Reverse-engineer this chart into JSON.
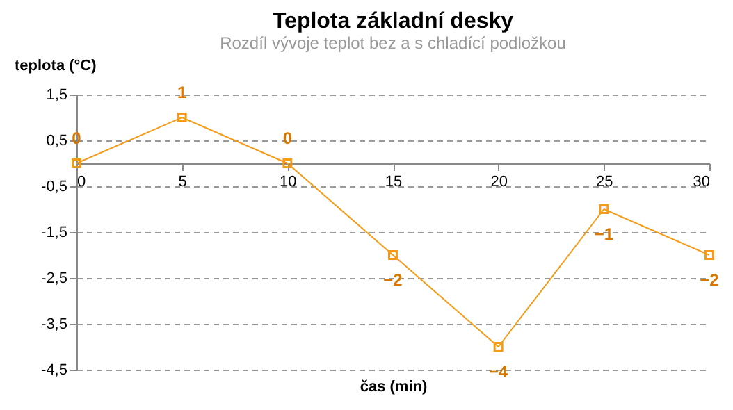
{
  "chart_data": {
    "type": "line",
    "title": "Teplota základní desky",
    "subtitle": "Rozdíl vývoje teplot bez a s chladící podložkou",
    "xlabel": "čas (min)",
    "ylabel": "teplota (°C)",
    "x": [
      0,
      5,
      10,
      15,
      20,
      25,
      30
    ],
    "series": [
      {
        "color": "#f59b1a",
        "values": [
          0,
          1,
          0,
          -2,
          -4,
          -1,
          -2
        ]
      }
    ],
    "xlim": [
      0,
      30
    ],
    "xticks": [
      0,
      5,
      10,
      15,
      20,
      25,
      30
    ],
    "ylim": [
      -4.5,
      1.5
    ],
    "yticks": [
      {
        "value": -4.5,
        "label": "-4,5"
      },
      {
        "value": -3.5,
        "label": "-3,5"
      },
      {
        "value": -2.5,
        "label": "-2,5"
      },
      {
        "value": -1.5,
        "label": "-1,5"
      },
      {
        "value": -0.5,
        "label": "-0,5"
      },
      {
        "value": 0.5,
        "label": "0,5"
      },
      {
        "value": 1.5,
        "label": "1,5"
      }
    ],
    "grid": "y",
    "marker": "square",
    "line_style": "solid",
    "data_labels": true
  }
}
